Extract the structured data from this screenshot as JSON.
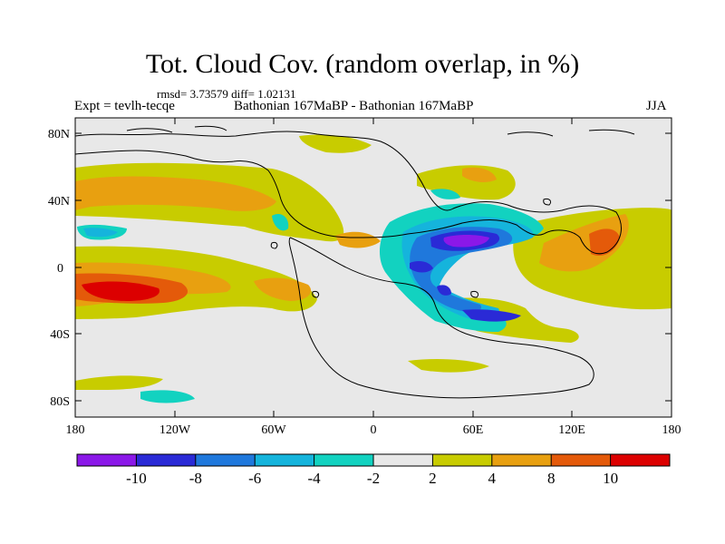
{
  "header": {
    "title": "Tot. Cloud Cov. (random overlap, in %)",
    "stats": "rmsd= 3.73579 diff= 1.02131",
    "experiment": "Expt = tevlh-tecqe",
    "comparison": "Bathonian 167MaBP - Bathonian 167MaBP",
    "season": "JJA"
  },
  "axes": {
    "y_ticks": [
      "80N",
      "40N",
      "0",
      "40S",
      "80S"
    ],
    "x_ticks": [
      "180",
      "120W",
      "60W",
      "0",
      "60E",
      "120E",
      "180"
    ]
  },
  "colorbar": {
    "labels": [
      "-10",
      "-8",
      "-6",
      "-4",
      "-2",
      "2",
      "4",
      "8",
      "10"
    ],
    "colors": [
      "#8b18e8",
      "#2a2ad6",
      "#1f78dc",
      "#15b4dc",
      "#12d2c0",
      "#e8e8e8",
      "#c8cc00",
      "#e8a010",
      "#e45a0a",
      "#dc0000"
    ]
  }
}
